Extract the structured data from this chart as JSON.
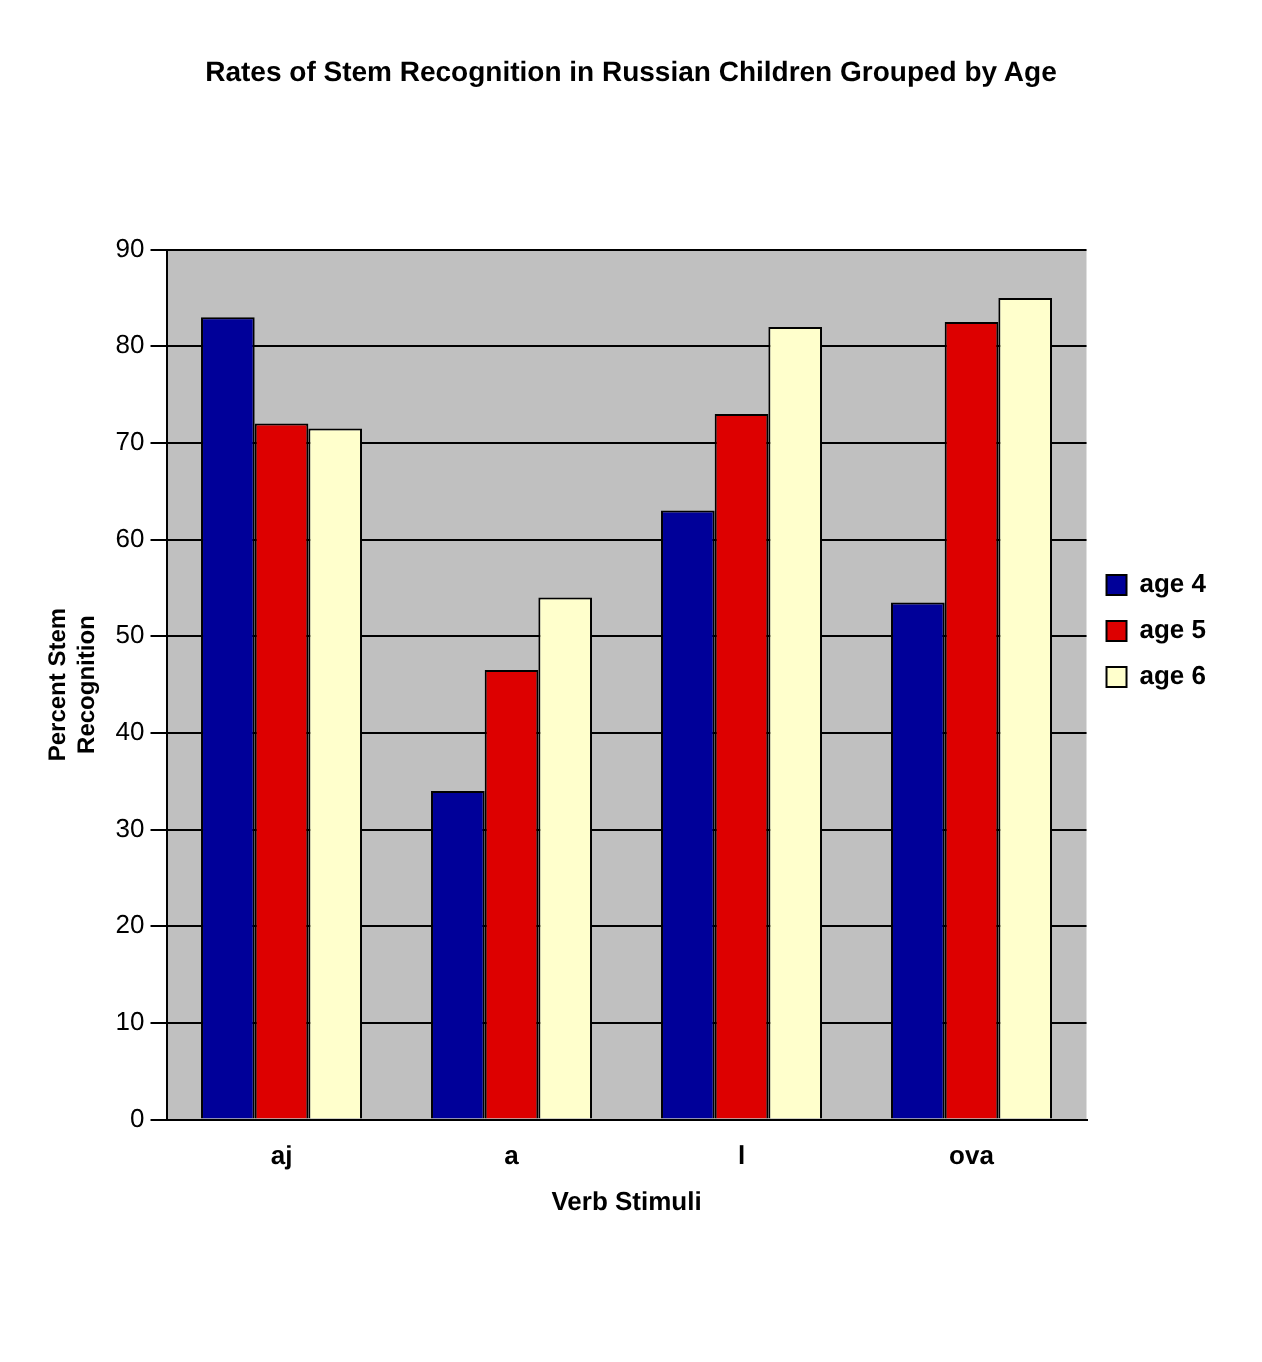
{
  "chart_data": {
    "type": "bar",
    "title": "Rates of Stem Recognition in Russian Children Grouped by Age",
    "xlabel": "Verb Stimuli",
    "ylabel": "Percent Stem Recognition",
    "categories": [
      "aj",
      "a",
      "l",
      "ova"
    ],
    "series": [
      {
        "name": "age 4",
        "color": "#000099",
        "values": [
          83,
          34,
          63,
          53.5
        ]
      },
      {
        "name": "age 5",
        "color": "#dd0000",
        "values": [
          72,
          46.5,
          73,
          82.5
        ]
      },
      {
        "name": "age 6",
        "color": "#ffffcc",
        "values": [
          71.5,
          54,
          82,
          85
        ]
      }
    ],
    "ylim": [
      0,
      90
    ],
    "yticks": [
      0,
      10,
      20,
      30,
      40,
      50,
      60,
      70,
      80,
      90
    ],
    "grid": "y",
    "legend": "right"
  }
}
